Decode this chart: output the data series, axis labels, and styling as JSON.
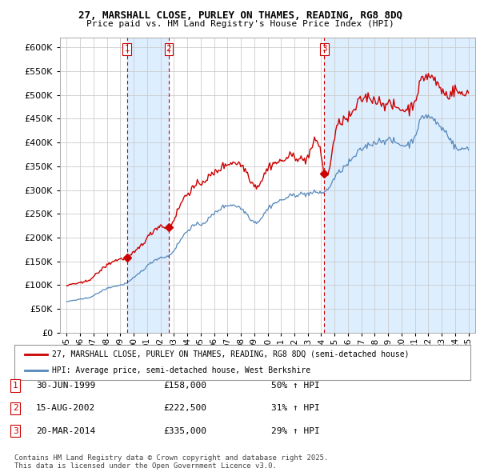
{
  "title": "27, MARSHALL CLOSE, PURLEY ON THAMES, READING, RG8 8DQ",
  "subtitle": "Price paid vs. HM Land Registry's House Price Index (HPI)",
  "legend_line1": "27, MARSHALL CLOSE, PURLEY ON THAMES, READING, RG8 8DQ (semi-detached house)",
  "legend_line2": "HPI: Average price, semi-detached house, West Berkshire",
  "footer": "Contains HM Land Registry data © Crown copyright and database right 2025.\nThis data is licensed under the Open Government Licence v3.0.",
  "transactions": [
    {
      "num": 1,
      "date": "30-JUN-1999",
      "price": "£158,000",
      "change": "50% ↑ HPI",
      "year": 1999.5,
      "price_val": 158000
    },
    {
      "num": 2,
      "date": "15-AUG-2002",
      "price": "£222,500",
      "change": "31% ↑ HPI",
      "year": 2002.62,
      "price_val": 222500
    },
    {
      "num": 3,
      "date": "20-MAR-2014",
      "price": "£335,000",
      "change": "29% ↑ HPI",
      "year": 2014.22,
      "price_val": 335000
    }
  ],
  "red_color": "#cc0000",
  "blue_color": "#5588bb",
  "vline_color": "#cc0000",
  "shade_color": "#ddeeff",
  "grid_color": "#cccccc",
  "bg_color": "#ffffff",
  "ylim": [
    0,
    620000
  ],
  "xlim": [
    1994.5,
    2025.5
  ],
  "yticks": [
    0,
    50000,
    100000,
    150000,
    200000,
    250000,
    300000,
    350000,
    400000,
    450000,
    500000,
    550000,
    600000
  ],
  "xticks": [
    1995,
    1996,
    1997,
    1998,
    1999,
    2000,
    2001,
    2002,
    2003,
    2004,
    2005,
    2006,
    2007,
    2008,
    2009,
    2010,
    2011,
    2012,
    2013,
    2014,
    2015,
    2016,
    2017,
    2018,
    2019,
    2020,
    2021,
    2022,
    2023,
    2024,
    2025
  ]
}
